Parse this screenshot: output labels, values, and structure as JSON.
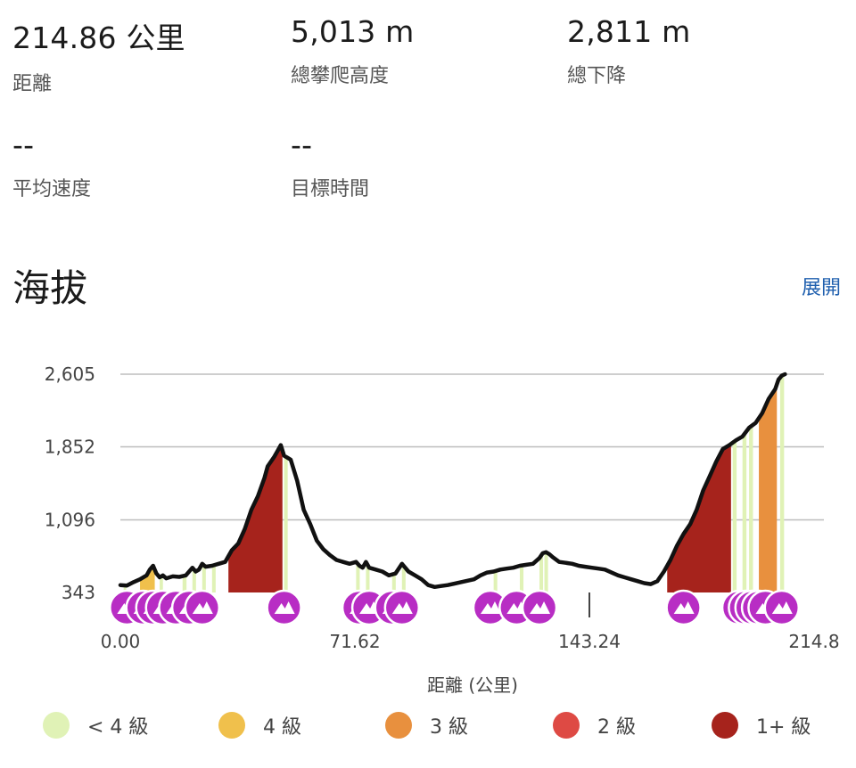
{
  "stats": {
    "distance": {
      "value": "214.86 公里",
      "label": "距離"
    },
    "climb": {
      "value": "5,013 m",
      "label": "總攀爬高度"
    },
    "descent": {
      "value": "2,811 m",
      "label": "總下降"
    },
    "avg_speed": {
      "value": "--",
      "label": "平均速度"
    },
    "target_time": {
      "value": "--",
      "label": "目標時間"
    }
  },
  "section_title": "海拔",
  "expand_label": "展開",
  "chart_data": {
    "type": "area",
    "xlabel": "距離 (公里)",
    "ylabel": "",
    "x_ticks": [
      "0.00",
      "71.62",
      "143.24",
      "214.8"
    ],
    "y_ticks": [
      "343",
      "1,096",
      "1,852",
      "2,605"
    ],
    "xlim": [
      0,
      214.86
    ],
    "ylim": [
      343,
      2605
    ],
    "profile": [
      [
        0,
        420
      ],
      [
        2,
        415
      ],
      [
        4,
        450
      ],
      [
        6,
        480
      ],
      [
        8,
        520
      ],
      [
        9,
        580
      ],
      [
        10,
        620
      ],
      [
        11,
        540
      ],
      [
        12,
        500
      ],
      [
        13,
        520
      ],
      [
        14,
        490
      ],
      [
        16,
        510
      ],
      [
        18,
        505
      ],
      [
        20,
        520
      ],
      [
        22,
        600
      ],
      [
        23,
        560
      ],
      [
        24,
        580
      ],
      [
        25,
        640
      ],
      [
        26,
        610
      ],
      [
        28,
        620
      ],
      [
        30,
        640
      ],
      [
        32,
        660
      ],
      [
        34,
        780
      ],
      [
        36,
        850
      ],
      [
        38,
        1000
      ],
      [
        40,
        1200
      ],
      [
        42,
        1340
      ],
      [
        44,
        1530
      ],
      [
        45,
        1650
      ],
      [
        46,
        1700
      ],
      [
        47,
        1750
      ],
      [
        48,
        1810
      ],
      [
        49,
        1870
      ],
      [
        50,
        1760
      ],
      [
        51,
        1740
      ],
      [
        52,
        1720
      ],
      [
        54,
        1500
      ],
      [
        56,
        1200
      ],
      [
        58,
        1050
      ],
      [
        60,
        880
      ],
      [
        62,
        790
      ],
      [
        64,
        730
      ],
      [
        66,
        680
      ],
      [
        68,
        660
      ],
      [
        70,
        640
      ],
      [
        72,
        660
      ],
      [
        73,
        620
      ],
      [
        74,
        600
      ],
      [
        75,
        660
      ],
      [
        76,
        600
      ],
      [
        78,
        580
      ],
      [
        80,
        560
      ],
      [
        82,
        520
      ],
      [
        84,
        540
      ],
      [
        86,
        640
      ],
      [
        88,
        560
      ],
      [
        90,
        520
      ],
      [
        92,
        480
      ],
      [
        94,
        420
      ],
      [
        96,
        400
      ],
      [
        98,
        410
      ],
      [
        100,
        420
      ],
      [
        104,
        450
      ],
      [
        108,
        480
      ],
      [
        110,
        520
      ],
      [
        112,
        550
      ],
      [
        114,
        560
      ],
      [
        116,
        580
      ],
      [
        118,
        590
      ],
      [
        120,
        600
      ],
      [
        122,
        620
      ],
      [
        124,
        630
      ],
      [
        126,
        640
      ],
      [
        128,
        700
      ],
      [
        129,
        750
      ],
      [
        130,
        760
      ],
      [
        131,
        740
      ],
      [
        132,
        710
      ],
      [
        134,
        660
      ],
      [
        136,
        650
      ],
      [
        138,
        640
      ],
      [
        140,
        620
      ],
      [
        142,
        610
      ],
      [
        144,
        600
      ],
      [
        146,
        590
      ],
      [
        148,
        580
      ],
      [
        150,
        550
      ],
      [
        152,
        520
      ],
      [
        154,
        500
      ],
      [
        156,
        480
      ],
      [
        158,
        460
      ],
      [
        160,
        440
      ],
      [
        162,
        430
      ],
      [
        164,
        460
      ],
      [
        165,
        510
      ],
      [
        166,
        560
      ],
      [
        168,
        680
      ],
      [
        170,
        830
      ],
      [
        172,
        950
      ],
      [
        174,
        1050
      ],
      [
        176,
        1200
      ],
      [
        178,
        1400
      ],
      [
        180,
        1550
      ],
      [
        182,
        1700
      ],
      [
        184,
        1830
      ],
      [
        186,
        1870
      ],
      [
        188,
        1920
      ],
      [
        190,
        1960
      ],
      [
        192,
        2050
      ],
      [
        194,
        2100
      ],
      [
        196,
        2200
      ],
      [
        198,
        2350
      ],
      [
        200,
        2450
      ],
      [
        201,
        2550
      ],
      [
        202,
        2590
      ],
      [
        203,
        2605
      ]
    ],
    "grade_segments": [
      {
        "x0": 6,
        "x1": 10.5,
        "cat": "4"
      },
      {
        "x0": 33,
        "x1": 49.5,
        "cat": "1+"
      },
      {
        "x0": 167,
        "x1": 186.5,
        "cat": "1+"
      },
      {
        "x0": 195,
        "x1": 200.5,
        "cat": "3"
      },
      {
        "x0": 1,
        "x1": 1.8,
        "cat": "<4"
      },
      {
        "x0": 12,
        "x1": 13,
        "cat": "<4"
      },
      {
        "x0": 19,
        "x1": 20.2,
        "cat": "<4"
      },
      {
        "x0": 22,
        "x1": 23.1,
        "cat": "<4"
      },
      {
        "x0": 25,
        "x1": 26.1,
        "cat": "<4"
      },
      {
        "x0": 28,
        "x1": 29.1,
        "cat": "<4"
      },
      {
        "x0": 50,
        "x1": 51.1,
        "cat": "<4"
      },
      {
        "x0": 72,
        "x1": 73.1,
        "cat": "<4"
      },
      {
        "x0": 75,
        "x1": 76.1,
        "cat": "<4"
      },
      {
        "x0": 83,
        "x1": 84.1,
        "cat": "<4"
      },
      {
        "x0": 86,
        "x1": 87.1,
        "cat": "<4"
      },
      {
        "x0": 114,
        "x1": 115.1,
        "cat": "<4"
      },
      {
        "x0": 122,
        "x1": 123.1,
        "cat": "<4"
      },
      {
        "x0": 128,
        "x1": 129.1,
        "cat": "<4"
      },
      {
        "x0": 129.5,
        "x1": 130.6,
        "cat": "<4"
      },
      {
        "x0": 187,
        "x1": 188.2,
        "cat": "<4"
      },
      {
        "x0": 190,
        "x1": 191.2,
        "cat": "<4"
      },
      {
        "x0": 192,
        "x1": 193.2,
        "cat": "<4"
      },
      {
        "x0": 201.5,
        "x1": 202.7,
        "cat": "<4"
      }
    ],
    "climb_markers": [
      2,
      7,
      10,
      13,
      17,
      21,
      25,
      50,
      73,
      76,
      83,
      86,
      113,
      121,
      128,
      172,
      189,
      191,
      193,
      195,
      197,
      202
    ],
    "cursor_x": 143.24,
    "legend": [
      {
        "label": "< 4 級",
        "color": "#e0f2b6"
      },
      {
        "label": "4 級",
        "color": "#f0c04c"
      },
      {
        "label": "3 級",
        "color": "#e8903e"
      },
      {
        "label": "2 級",
        "color": "#de4a44"
      },
      {
        "label": "1+ 級",
        "color": "#a6231c"
      }
    ]
  },
  "colors": {
    "marker_fill": "#b82dc4",
    "line": "#111111",
    "grid": "#bbbbbb",
    "link": "#1f5fae"
  },
  "icons": {
    "marker": "mountain-icon"
  }
}
